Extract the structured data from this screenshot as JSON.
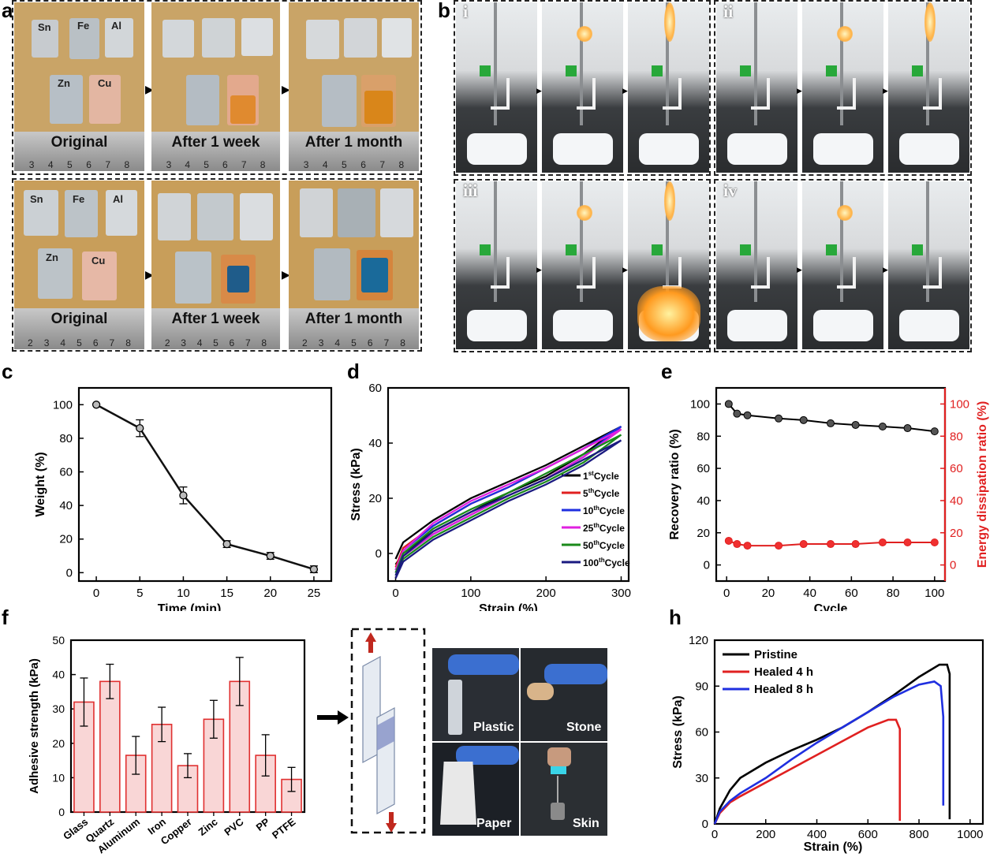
{
  "panels": {
    "a": "a",
    "b": "b",
    "c": "c",
    "d": "d",
    "e": "e",
    "f": "f",
    "h": "h"
  },
  "panel_a": {
    "metals": [
      "Sn",
      "Fe",
      "Al",
      "Zn",
      "Cu"
    ],
    "stages": [
      "Original",
      "After 1 week",
      "After 1 month"
    ],
    "ruler_numbers_top": [
      "3",
      "4",
      "5",
      "6",
      "7",
      "8"
    ],
    "ruler_numbers_bottom": [
      "2",
      "3",
      "4",
      "5",
      "6",
      "7",
      "8"
    ]
  },
  "panel_b": {
    "sublabels": [
      "i",
      "ii",
      "iii",
      "iv"
    ]
  },
  "panel_f_photo": {
    "labels": [
      "Plastic",
      "Stone",
      "Paper",
      "Skin"
    ]
  },
  "colors": {
    "black": "#000000",
    "red": "#e02020",
    "blue": "#1f2fe0",
    "magenta": "#e020e0",
    "green": "#1a8a1a",
    "navy": "#1a1a80",
    "bar_fill": "#f7c8c8",
    "bar_edge": "#e03030"
  },
  "chart_data": [
    {
      "id": "c",
      "type": "line",
      "xlabel": "Time (min)",
      "ylabel": "Weight (%)",
      "x": [
        0,
        5,
        10,
        15,
        20,
        25
      ],
      "values": [
        100,
        86,
        46,
        17,
        10,
        2
      ],
      "errors": [
        0,
        5,
        5,
        2,
        2,
        2
      ],
      "xlim": [
        -2,
        27
      ],
      "ylim": [
        -5,
        110
      ],
      "xticks": [
        0,
        5,
        10,
        15,
        20,
        25
      ],
      "yticks": [
        0,
        20,
        40,
        60,
        80,
        100
      ]
    },
    {
      "id": "d",
      "type": "line",
      "xlabel": "Strain (%)",
      "ylabel": "Stress (kPa)",
      "xlim": [
        -10,
        310
      ],
      "ylim": [
        -10,
        60
      ],
      "xticks": [
        0,
        100,
        200,
        300
      ],
      "yticks": [
        0,
        20,
        40,
        60
      ],
      "series": [
        {
          "name": "1",
          "sup": "st",
          "suffix": "Cycle",
          "color": "#000000",
          "x": [
            0,
            10,
            50,
            100,
            150,
            200,
            250,
            300
          ],
          "y": [
            -2,
            4,
            12,
            20,
            26,
            32,
            39,
            46
          ],
          "x_return": [
            300,
            250,
            200,
            150,
            100,
            50,
            10,
            0
          ],
          "y_return": [
            46,
            36,
            28,
            22,
            15,
            8,
            0,
            -4
          ]
        },
        {
          "name": "5",
          "sup": "th",
          "suffix": "Cycle",
          "color": "#e02020",
          "x": [
            0,
            10,
            50,
            100,
            150,
            200,
            250,
            300
          ],
          "y": [
            -5,
            2,
            10,
            18,
            24,
            31,
            38,
            45
          ],
          "x_return": [
            300,
            250,
            200,
            150,
            100,
            50,
            10,
            0
          ],
          "y_return": [
            45,
            35,
            27,
            21,
            14,
            7,
            -1,
            -6
          ]
        },
        {
          "name": "10",
          "sup": "th",
          "suffix": "Cycle",
          "color": "#1f2fe0",
          "x": [
            0,
            10,
            50,
            100,
            150,
            200,
            250,
            300
          ],
          "y": [
            -6,
            1,
            10,
            18,
            24,
            31,
            38,
            46
          ],
          "x_return": [
            300,
            250,
            200,
            150,
            100,
            50,
            10,
            0
          ],
          "y_return": [
            46,
            35,
            27,
            21,
            14,
            7,
            -1,
            -7
          ]
        },
        {
          "name": "25",
          "sup": "th",
          "suffix": "Cycle",
          "color": "#e020e0",
          "x": [
            0,
            10,
            50,
            100,
            150,
            200,
            250,
            300
          ],
          "y": [
            -6,
            1,
            11,
            19,
            25,
            31,
            38,
            45
          ],
          "x_return": [
            300,
            250,
            200,
            150,
            100,
            50,
            10,
            0
          ],
          "y_return": [
            45,
            35,
            27,
            21,
            14,
            7,
            -1,
            -7
          ]
        },
        {
          "name": "50",
          "sup": "th",
          "suffix": "Cycle",
          "color": "#1a8a1a",
          "x": [
            0,
            10,
            50,
            100,
            150,
            200,
            250,
            300
          ],
          "y": [
            -7,
            0,
            9,
            16,
            22,
            29,
            36,
            43
          ],
          "x_return": [
            300,
            250,
            200,
            150,
            100,
            50,
            10,
            0
          ],
          "y_return": [
            43,
            33,
            26,
            20,
            13,
            6,
            -2,
            -8
          ]
        },
        {
          "name": "100",
          "sup": "th",
          "suffix": "Cycle",
          "color": "#1a1a80",
          "x": [
            0,
            10,
            50,
            100,
            150,
            200,
            250,
            300
          ],
          "y": [
            -8,
            -1,
            8,
            15,
            21,
            27,
            34,
            41
          ],
          "x_return": [
            300,
            250,
            200,
            150,
            100,
            50,
            10,
            0
          ],
          "y_return": [
            41,
            32,
            25,
            19,
            12,
            5,
            -3,
            -9
          ]
        }
      ]
    },
    {
      "id": "e",
      "type": "scatter",
      "xlabel": "Cycle",
      "ylabel": "Recovery ratio (%)",
      "ylabel_right": "Energy dissipation ratio (%)",
      "xlim": [
        -5,
        105
      ],
      "ylim": [
        -10,
        110
      ],
      "xticks": [
        0,
        20,
        40,
        60,
        80,
        100
      ],
      "yticks": [
        0,
        20,
        40,
        60,
        80,
        100
      ],
      "yticks_right": [
        0,
        20,
        40,
        60,
        80,
        100
      ],
      "series": [
        {
          "name": "Recovery ratio",
          "color": "#000000",
          "x": [
            1,
            5,
            10,
            25,
            37,
            50,
            62,
            75,
            87,
            100
          ],
          "y": [
            100,
            94,
            93,
            91,
            90,
            88,
            87,
            86,
            85,
            83
          ]
        },
        {
          "name": "Energy dissipation ratio",
          "color": "#e02020",
          "x": [
            1,
            5,
            10,
            25,
            37,
            50,
            62,
            75,
            87,
            100
          ],
          "y": [
            15,
            13,
            12,
            12,
            13,
            13,
            13,
            14,
            14,
            14
          ]
        }
      ]
    },
    {
      "id": "f",
      "type": "bar",
      "ylabel": "Adhesive strength (kPa)",
      "categories": [
        "Glass",
        "Quartz",
        "Aluminum",
        "Iron",
        "Copper",
        "Zinc",
        "PVC",
        "PP",
        "PTFE"
      ],
      "values": [
        32,
        38,
        16.5,
        25.5,
        13.5,
        27,
        38,
        16.5,
        9.5
      ],
      "errors": [
        7,
        5,
        5.5,
        5,
        3.5,
        5.5,
        7,
        6,
        3.5
      ],
      "ylim": [
        0,
        50
      ],
      "yticks": [
        0,
        10,
        20,
        30,
        40,
        50
      ]
    },
    {
      "id": "h",
      "type": "line",
      "xlabel": "Strain (%)",
      "ylabel": "Stress (kPa)",
      "xlim": [
        0,
        1050
      ],
      "ylim": [
        0,
        120
      ],
      "xticks": [
        0,
        200,
        400,
        600,
        800,
        1000
      ],
      "yticks": [
        0,
        30,
        60,
        90,
        120
      ],
      "series": [
        {
          "name": "Pristine",
          "color": "#000000",
          "x": [
            0,
            20,
            60,
            100,
            200,
            300,
            400,
            500,
            600,
            700,
            800,
            880,
            910,
            920,
            920
          ],
          "y": [
            0,
            10,
            22,
            30,
            40,
            48,
            55,
            63,
            73,
            84,
            96,
            104,
            104,
            98,
            3
          ]
        },
        {
          "name": "Healed 4 h",
          "color": "#e02020",
          "x": [
            0,
            20,
            60,
            100,
            200,
            300,
            400,
            500,
            600,
            680,
            710,
            725,
            725
          ],
          "y": [
            0,
            7,
            14,
            18,
            27,
            36,
            45,
            54,
            63,
            68,
            68,
            62,
            2
          ]
        },
        {
          "name": "Healed 8 h",
          "color": "#1f2fe0",
          "x": [
            0,
            20,
            60,
            100,
            200,
            300,
            400,
            500,
            600,
            700,
            800,
            860,
            885,
            895,
            895
          ],
          "y": [
            0,
            8,
            15,
            20,
            30,
            42,
            53,
            63,
            73,
            83,
            91,
            93,
            90,
            70,
            12
          ]
        }
      ]
    }
  ]
}
